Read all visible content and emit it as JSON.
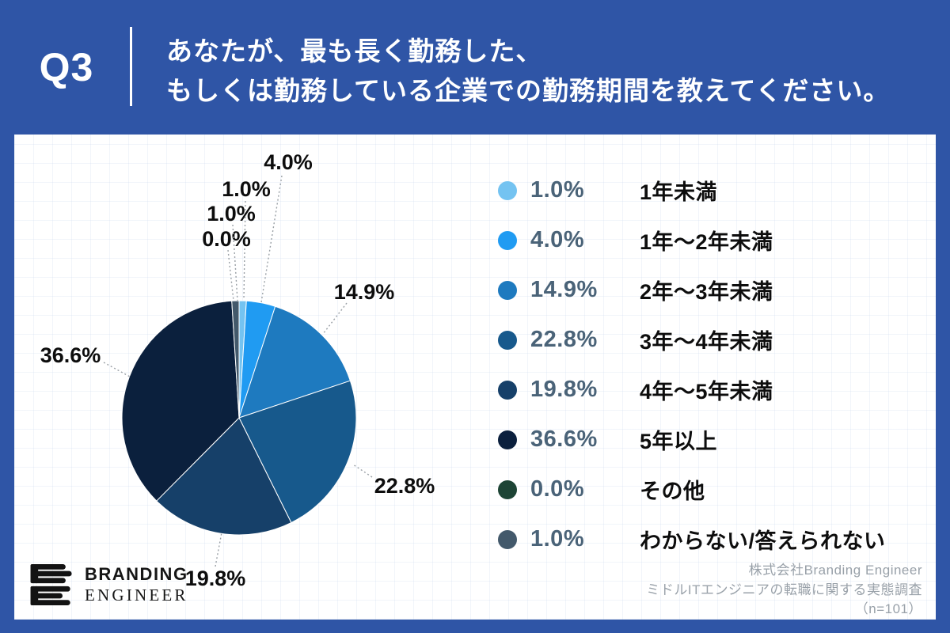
{
  "header": {
    "question_number": "Q3",
    "title_line1": "あなたが、最も長く勤務した、",
    "title_line2": "もしくは勤務している企業での勤務期間を教えてください。"
  },
  "chart_data": {
    "type": "pie",
    "title": "あなたが、最も長く勤務した、もしくは勤務している企業での勤務期間を教えてください。",
    "categories": [
      "1年未満",
      "1年〜2年未満",
      "2年〜3年未満",
      "3年〜4年未満",
      "4年〜5年未満",
      "5年以上",
      "その他",
      "わからない/答えられない"
    ],
    "values": [
      1.0,
      4.0,
      14.9,
      22.8,
      19.8,
      36.6,
      0.0,
      1.0
    ],
    "unit": "%",
    "colors": [
      "#74C3F1",
      "#209BF2",
      "#1E7ABF",
      "#17598C",
      "#164069",
      "#0B203D",
      "#1D4435",
      "#43596B"
    ],
    "callout_labels": [
      "1.0%",
      "4.0%",
      "14.9%",
      "22.8%",
      "19.8%",
      "36.6%",
      "0.0%",
      "1.0%"
    ],
    "legend_position": "right",
    "legend": [
      {
        "percent": "1.0%",
        "label": "1年未満"
      },
      {
        "percent": "4.0%",
        "label": "1年〜2年未満"
      },
      {
        "percent": "14.9%",
        "label": "2年〜3年未満"
      },
      {
        "percent": "22.8%",
        "label": "3年〜4年未満"
      },
      {
        "percent": "19.8%",
        "label": "4年〜5年未満"
      },
      {
        "percent": "36.6%",
        "label": "5年以上"
      },
      {
        "percent": "0.0%",
        "label": "その他"
      },
      {
        "percent": "1.0%",
        "label": "わからない/答えられない"
      }
    ],
    "start_angle_deg": 0,
    "direction": "clockwise"
  },
  "footer": {
    "company": "株式会社Branding Engineer",
    "survey": "ミドルITエンジニアの転職に関する実態調査",
    "sample": "（n=101）",
    "logo_line1": "BRANDING",
    "logo_line2": "ENGINEER"
  },
  "colors": {
    "background": "#2F55A6",
    "percent_text": "#4A6378",
    "leader_line": "#9AA0A6"
  }
}
